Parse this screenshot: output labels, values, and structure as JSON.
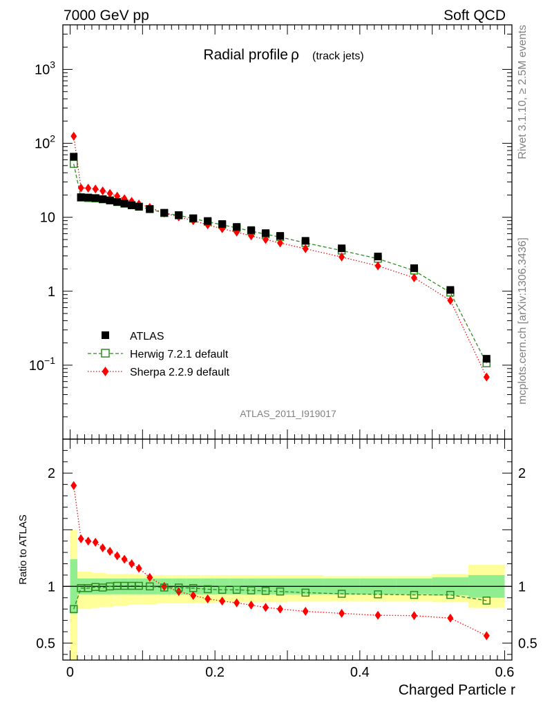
{
  "header": {
    "left": "7000 GeV pp",
    "right": "Soft QCD"
  },
  "side_labels": {
    "rivet": "Rivet 3.1.10, ≥ 2.5M events",
    "mcplots": "mcplots.cern.ch [arXiv:1306.3436]"
  },
  "colors": {
    "atlas": "#000000",
    "herwig": "#2e8b1f",
    "sherpa": "#ff0000",
    "band_inner": "#90ee90",
    "band_outer": "#ffff99"
  },
  "chart_data": [
    {
      "type": "scatter",
      "panel": "main",
      "title": "Radial profile",
      "title_symbol": "ρ",
      "title_suffix": "(track jets)",
      "watermark": "ATLAS_2011_I919017",
      "yscale": "log",
      "xlim": [
        -0.01,
        0.61
      ],
      "ylim": [
        0.01,
        4000
      ],
      "ytick_labels": [
        {
          "value": 1000,
          "base": "10",
          "exp": "3"
        },
        {
          "value": 100,
          "base": "10",
          "exp": "2"
        },
        {
          "value": 10,
          "base": "10",
          "exp": ""
        },
        {
          "value": 1,
          "base": "1",
          "exp": ""
        },
        {
          "value": 0.1,
          "base": "10",
          "exp": "−1"
        }
      ],
      "x": [
        0.005,
        0.015,
        0.025,
        0.035,
        0.045,
        0.055,
        0.065,
        0.075,
        0.085,
        0.095,
        0.11,
        0.13,
        0.15,
        0.17,
        0.19,
        0.21,
        0.23,
        0.25,
        0.27,
        0.29,
        0.325,
        0.375,
        0.425,
        0.475,
        0.525,
        0.575
      ],
      "series": [
        {
          "name": "ATLAS",
          "marker": "square-filled",
          "values": [
            66,
            18.7,
            18.5,
            18.2,
            17.6,
            16.9,
            16.1,
            15.3,
            14.5,
            13.9,
            12.9,
            11.5,
            10.7,
            9.7,
            8.9,
            8.1,
            7.4,
            6.7,
            6.1,
            5.6,
            4.8,
            3.8,
            2.95,
            2.05,
            1.04,
            0.122
          ]
        },
        {
          "name": "Herwig 7.2.1 default",
          "marker": "square-open",
          "line": "dashed",
          "values": [
            52.7,
            18.4,
            18.2,
            18.0,
            17.5,
            16.9,
            16.1,
            15.3,
            14.6,
            13.9,
            12.9,
            11.4,
            10.6,
            9.6,
            8.7,
            7.9,
            7.2,
            6.5,
            5.9,
            5.4,
            4.5,
            3.55,
            2.75,
            1.9,
            0.96,
            0.106
          ]
        },
        {
          "name": "Sherpa 2.2.9 default",
          "marker": "diamond-filled",
          "line": "dotted",
          "values": [
            125,
            25,
            24.8,
            24.1,
            22.7,
            21.0,
            19.3,
            17.8,
            16.4,
            15.1,
            13.6,
            11.4,
            10.1,
            9.0,
            7.9,
            7.0,
            6.3,
            5.6,
            5.0,
            4.5,
            3.75,
            2.9,
            2.2,
            1.52,
            0.75,
            0.069
          ]
        }
      ],
      "legend": [
        "ATLAS",
        "Herwig 7.2.1 default",
        "Sherpa 2.2.9 default"
      ],
      "legend_position": "bottom-left"
    },
    {
      "type": "scatter",
      "panel": "ratio",
      "ylabel": "Ratio to ATLAS",
      "xlabel": "Charged Particle r",
      "xlim": [
        -0.01,
        0.61
      ],
      "ylim": [
        0.35,
        2.3
      ],
      "ytick_labels": [
        "2",
        "1",
        "0.5"
      ],
      "ytick_values": [
        2,
        1,
        0.5
      ],
      "xtick_labels": [
        "0",
        "0.2",
        "0.4",
        "0.6"
      ],
      "xtick_values": [
        0,
        0.2,
        0.4,
        0.6
      ],
      "reference_line": 1,
      "bins": [
        [
          0,
          0.01
        ],
        [
          0.01,
          0.02
        ],
        [
          0.02,
          0.03
        ],
        [
          0.03,
          0.04
        ],
        [
          0.04,
          0.05
        ],
        [
          0.05,
          0.06
        ],
        [
          0.06,
          0.07
        ],
        [
          0.07,
          0.08
        ],
        [
          0.08,
          0.09
        ],
        [
          0.09,
          0.1
        ],
        [
          0.1,
          0.12
        ],
        [
          0.12,
          0.14
        ],
        [
          0.14,
          0.16
        ],
        [
          0.16,
          0.18
        ],
        [
          0.18,
          0.2
        ],
        [
          0.2,
          0.22
        ],
        [
          0.22,
          0.24
        ],
        [
          0.24,
          0.26
        ],
        [
          0.26,
          0.28
        ],
        [
          0.28,
          0.3
        ],
        [
          0.3,
          0.35
        ],
        [
          0.35,
          0.4
        ],
        [
          0.4,
          0.45
        ],
        [
          0.45,
          0.5
        ],
        [
          0.5,
          0.55
        ],
        [
          0.55,
          0.6
        ]
      ],
      "band_inner": [
        [
          0.76,
          1.24
        ],
        [
          0.93,
          1.07
        ],
        [
          0.93,
          1.07
        ],
        [
          0.93,
          1.07
        ],
        [
          0.93,
          1.07
        ],
        [
          0.93,
          1.07
        ],
        [
          0.93,
          1.07
        ],
        [
          0.93,
          1.07
        ],
        [
          0.93,
          1.07
        ],
        [
          0.93,
          1.07
        ],
        [
          0.93,
          1.07
        ],
        [
          0.93,
          1.07
        ],
        [
          0.93,
          1.07
        ],
        [
          0.93,
          1.07
        ],
        [
          0.93,
          1.07
        ],
        [
          0.93,
          1.07
        ],
        [
          0.93,
          1.07
        ],
        [
          0.93,
          1.07
        ],
        [
          0.93,
          1.07
        ],
        [
          0.93,
          1.07
        ],
        [
          0.93,
          1.07
        ],
        [
          0.93,
          1.07
        ],
        [
          0.93,
          1.07
        ],
        [
          0.93,
          1.07
        ],
        [
          0.92,
          1.08
        ],
        [
          0.9,
          1.1
        ]
      ],
      "band_outer": [
        [
          0.32,
          1.5
        ],
        [
          0.8,
          1.13
        ],
        [
          0.8,
          1.13
        ],
        [
          0.81,
          1.12
        ],
        [
          0.82,
          1.12
        ],
        [
          0.82,
          1.11
        ],
        [
          0.83,
          1.11
        ],
        [
          0.83,
          1.11
        ],
        [
          0.84,
          1.11
        ],
        [
          0.84,
          1.11
        ],
        [
          0.84,
          1.1
        ],
        [
          0.85,
          1.1
        ],
        [
          0.85,
          1.1
        ],
        [
          0.85,
          1.1
        ],
        [
          0.85,
          1.1
        ],
        [
          0.86,
          1.1
        ],
        [
          0.86,
          1.1
        ],
        [
          0.86,
          1.1
        ],
        [
          0.86,
          1.1
        ],
        [
          0.86,
          1.1
        ],
        [
          0.87,
          1.1
        ],
        [
          0.87,
          1.09
        ],
        [
          0.87,
          1.09
        ],
        [
          0.87,
          1.09
        ],
        [
          0.86,
          1.11
        ],
        [
          0.81,
          1.19
        ]
      ],
      "x": [
        0.005,
        0.015,
        0.025,
        0.035,
        0.045,
        0.055,
        0.065,
        0.075,
        0.085,
        0.095,
        0.11,
        0.13,
        0.15,
        0.17,
        0.19,
        0.21,
        0.23,
        0.25,
        0.27,
        0.29,
        0.325,
        0.375,
        0.425,
        0.475,
        0.525,
        0.575
      ],
      "series": [
        {
          "name": "Herwig 7.2.1 default",
          "marker": "square-open",
          "line": "dashed",
          "values": [
            0.8,
            0.985,
            0.985,
            0.995,
            0.99,
            1.0,
            1.005,
            1.005,
            1.005,
            1.005,
            1.0,
            0.99,
            0.99,
            0.985,
            0.975,
            0.97,
            0.97,
            0.965,
            0.96,
            0.955,
            0.945,
            0.935,
            0.93,
            0.925,
            0.925,
            0.875
          ]
        },
        {
          "name": "Sherpa 2.2.9 default",
          "marker": "diamond-filled",
          "line": "dotted",
          "values": [
            1.89,
            1.42,
            1.4,
            1.39,
            1.34,
            1.31,
            1.27,
            1.24,
            1.2,
            1.16,
            1.08,
            1.0,
            0.955,
            0.92,
            0.89,
            0.87,
            0.855,
            0.835,
            0.815,
            0.8,
            0.78,
            0.762,
            0.745,
            0.742,
            0.72,
            0.565
          ]
        }
      ]
    }
  ]
}
